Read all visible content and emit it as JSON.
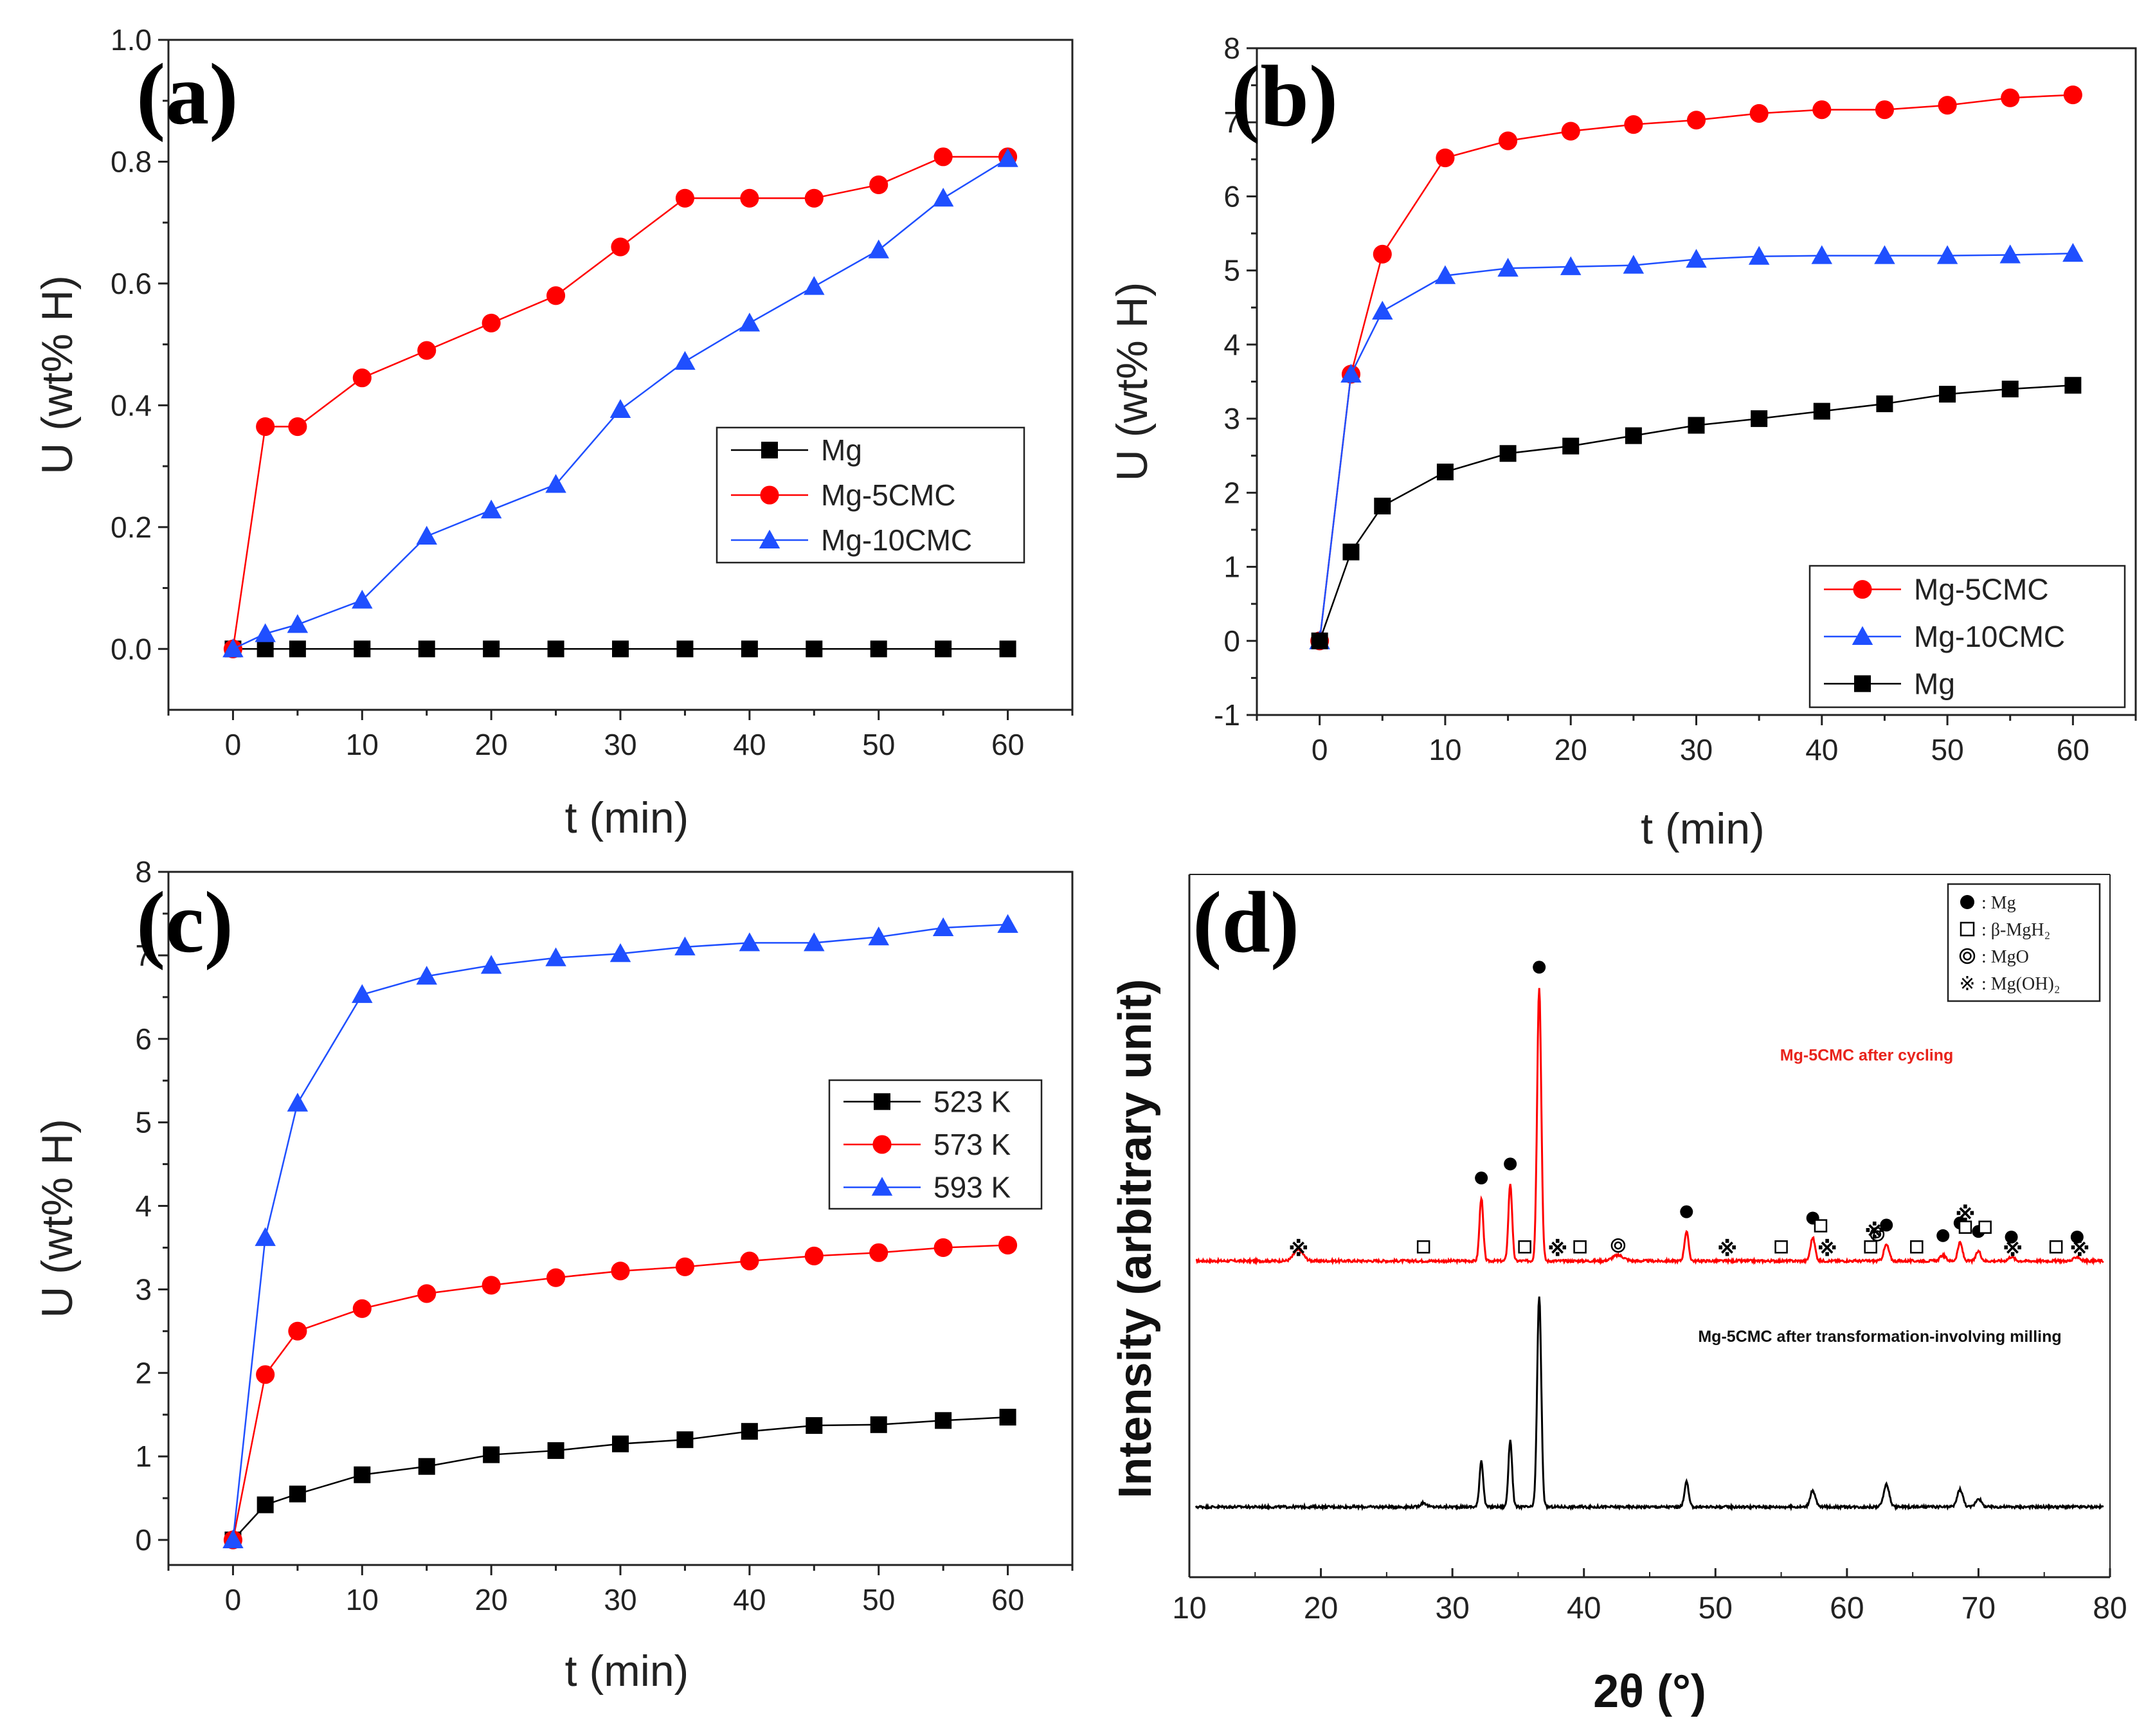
{
  "chart_data": [
    {
      "panel": "(a)",
      "type": "line",
      "xlabel": "t (min)",
      "ylabel": "U (wt% H)",
      "xlim": [
        -5,
        65
      ],
      "ylim": [
        -0.1,
        1.0
      ],
      "xticks": [
        0,
        10,
        20,
        30,
        40,
        50,
        60
      ],
      "yticks": [
        0.0,
        0.2,
        0.4,
        0.6,
        0.8,
        1.0
      ],
      "ytick_labels": [
        "0.0",
        "0.2",
        "0.4",
        "0.6",
        "0.8",
        "1.0"
      ],
      "legend_position": "center-right",
      "x": [
        0,
        2.5,
        5,
        10,
        15,
        20,
        25,
        30,
        35,
        40,
        45,
        50,
        55,
        60
      ],
      "series": [
        {
          "name": "Mg",
          "color": "#000000",
          "marker": "square",
          "values": [
            0,
            0,
            0,
            0,
            0,
            0,
            0,
            0,
            0,
            0,
            0,
            0,
            0,
            0
          ]
        },
        {
          "name": "Mg-5CMC",
          "color": "#ff0000",
          "marker": "circle",
          "values": [
            0,
            0.365,
            0.365,
            0.445,
            0.49,
            0.535,
            0.58,
            0.66,
            0.74,
            0.74,
            0.74,
            0.762,
            0.808,
            0.808
          ]
        },
        {
          "name": "Mg-10CMC",
          "color": "#1f4fff",
          "marker": "triangle",
          "values": [
            0,
            0.025,
            0.04,
            0.08,
            0.185,
            0.228,
            0.27,
            0.393,
            0.472,
            0.535,
            0.595,
            0.655,
            0.74,
            0.805
          ]
        }
      ]
    },
    {
      "panel": "(b)",
      "type": "line",
      "xlabel": "t (min)",
      "ylabel": "U (wt% H)",
      "xlim": [
        -5,
        65
      ],
      "ylim": [
        -1,
        8
      ],
      "xticks": [
        0,
        10,
        20,
        30,
        40,
        50,
        60
      ],
      "yticks": [
        -1,
        0,
        1,
        2,
        3,
        4,
        5,
        6,
        7,
        8
      ],
      "ytick_labels": [
        "-1",
        "0",
        "1",
        "2",
        "3",
        "4",
        "5",
        "6",
        "7",
        "8"
      ],
      "legend_position": "bottom-right",
      "x": [
        0,
        2.5,
        5,
        10,
        15,
        20,
        25,
        30,
        35,
        40,
        45,
        50,
        55,
        60
      ],
      "series": [
        {
          "name": "Mg-5CMC",
          "color": "#ff0000",
          "marker": "circle",
          "values": [
            0,
            3.6,
            5.22,
            6.52,
            6.75,
            6.88,
            6.97,
            7.03,
            7.12,
            7.17,
            7.17,
            7.23,
            7.33,
            7.37
          ]
        },
        {
          "name": "Mg-10CMC",
          "color": "#1f4fff",
          "marker": "triangle",
          "values": [
            0,
            3.6,
            4.45,
            4.93,
            5.03,
            5.05,
            5.07,
            5.15,
            5.19,
            5.2,
            5.2,
            5.2,
            5.21,
            5.23
          ]
        },
        {
          "name": "Mg",
          "color": "#000000",
          "marker": "square",
          "values": [
            0,
            1.2,
            1.82,
            2.28,
            2.53,
            2.63,
            2.77,
            2.91,
            3.0,
            3.1,
            3.2,
            3.33,
            3.4,
            3.45
          ]
        }
      ]
    },
    {
      "panel": "(c)",
      "type": "line",
      "xlabel": "t (min)",
      "ylabel": "U (wt% H)",
      "xlim": [
        -5,
        65
      ],
      "ylim": [
        -0.3,
        8
      ],
      "xticks": [
        0,
        10,
        20,
        30,
        40,
        50,
        60
      ],
      "yticks": [
        0,
        1,
        2,
        3,
        4,
        5,
        6,
        7,
        8
      ],
      "ytick_labels": [
        "0",
        "1",
        "2",
        "3",
        "4",
        "5",
        "6",
        "7",
        "8"
      ],
      "legend_position": "center-right",
      "x": [
        0,
        2.5,
        5,
        10,
        15,
        20,
        25,
        30,
        35,
        40,
        45,
        50,
        55,
        60
      ],
      "series": [
        {
          "name": "523 K",
          "color": "#000000",
          "marker": "square",
          "values": [
            0,
            0.42,
            0.55,
            0.78,
            0.88,
            1.02,
            1.07,
            1.15,
            1.2,
            1.3,
            1.37,
            1.38,
            1.43,
            1.47
          ]
        },
        {
          "name": "573 K",
          "color": "#ff0000",
          "marker": "circle",
          "values": [
            0,
            1.98,
            2.5,
            2.77,
            2.95,
            3.05,
            3.14,
            3.22,
            3.27,
            3.34,
            3.4,
            3.44,
            3.5,
            3.53
          ]
        },
        {
          "name": "593 K",
          "color": "#1f4fff",
          "marker": "triangle",
          "values": [
            0,
            3.62,
            5.23,
            6.53,
            6.75,
            6.88,
            6.97,
            7.02,
            7.1,
            7.15,
            7.15,
            7.22,
            7.33,
            7.37
          ]
        }
      ]
    },
    {
      "panel": "(d)",
      "type": "line",
      "xlabel": "2θ (°)",
      "ylabel": "Intensity (arbitrary unit)",
      "xlim": [
        10,
        80
      ],
      "ylim": [
        0,
        100
      ],
      "xticks": [
        10,
        20,
        30,
        40,
        50,
        60,
        70,
        80
      ],
      "legend_position": "top-right",
      "legend": [
        {
          "symbol": "filled-circle",
          "label": ": Mg"
        },
        {
          "symbol": "open-square",
          "label": ": β-MgH₂"
        },
        {
          "symbol": "double-circle",
          "label": ": MgO"
        },
        {
          "symbol": "star",
          "label": ": Mg(OH)₂"
        }
      ],
      "series": [
        {
          "name": "Mg-5CMC after cycling",
          "color": "#ff0000",
          "baseline": 45,
          "peaks": [
            [
              18.3,
              1.6,
              0.5
            ],
            [
              32.2,
              9,
              0.2
            ],
            [
              34.4,
              11,
              0.2
            ],
            [
              36.6,
              39,
              0.22
            ],
            [
              42.6,
              0.8,
              0.6
            ],
            [
              47.8,
              4.2,
              0.22
            ],
            [
              57.4,
              3.3,
              0.25
            ],
            [
              63.0,
              2.3,
              0.28
            ],
            [
              67.3,
              0.8,
              0.3
            ],
            [
              68.6,
              2.6,
              0.25
            ],
            [
              70.0,
              1.4,
              0.25
            ],
            [
              72.5,
              0.6,
              0.3
            ],
            [
              77.5,
              0.6,
              0.3
            ]
          ]
        },
        {
          "name": "Mg-5CMC after transformation-involving milling",
          "color": "#000000",
          "baseline": 10,
          "peaks": [
            [
              27.8,
              0.6,
              0.3
            ],
            [
              32.2,
              6.6,
              0.2
            ],
            [
              34.4,
              9.5,
              0.2
            ],
            [
              36.6,
              30,
              0.22
            ],
            [
              47.8,
              3.6,
              0.22
            ],
            [
              57.4,
              2.3,
              0.28
            ],
            [
              63.0,
              3.2,
              0.3
            ],
            [
              68.6,
              2.5,
              0.3
            ],
            [
              70.0,
              1.2,
              0.3
            ]
          ]
        }
      ],
      "phase_markers": {
        "Mg": [
          32.2,
          34.4,
          36.6,
          47.8,
          57.4,
          63.0,
          67.3,
          68.6,
          70.0,
          72.5,
          77.5
        ],
        "beta_MgH2": [
          27.8,
          35.5,
          39.7,
          55.0,
          58.0,
          61.8,
          65.3,
          69.0,
          70.5,
          75.9
        ],
        "MgO": [
          42.6,
          62.3
        ],
        "MgOH2": [
          18.3,
          38.0,
          50.9,
          58.5,
          62.1,
          69.0,
          72.6,
          77.7
        ]
      }
    }
  ]
}
